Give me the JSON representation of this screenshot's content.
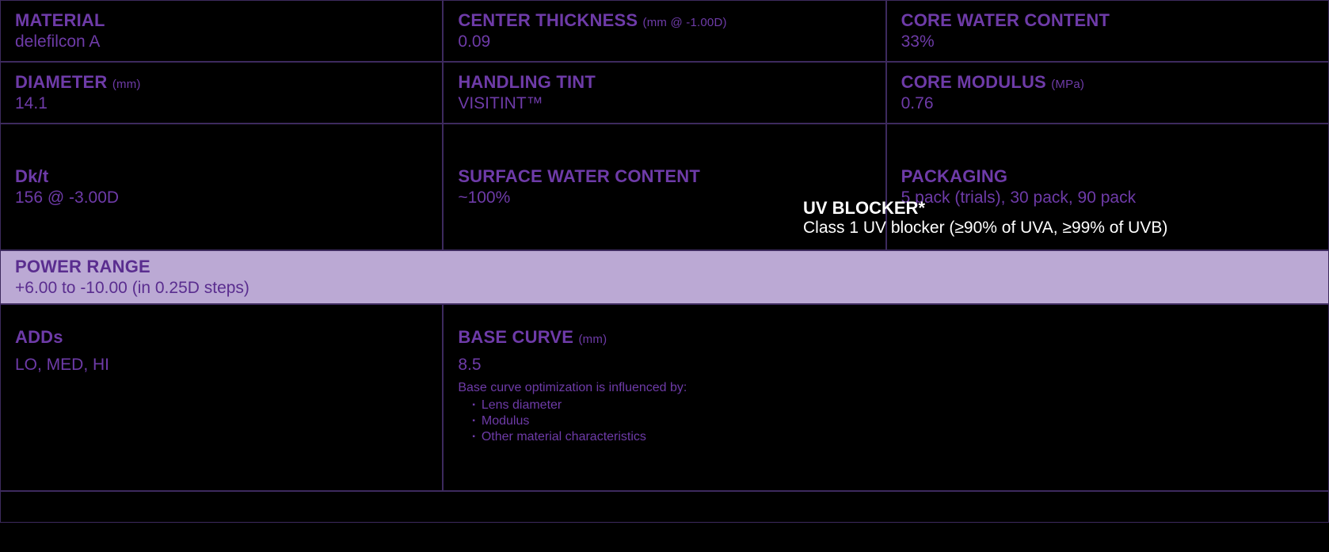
{
  "colors": {
    "background": "#000000",
    "border": "#3d2a5e",
    "text_purple": "#6e3ba8",
    "highlight_bg": "#bba9d4",
    "highlight_text": "#5a2d8f",
    "uv_text": "#ffffff"
  },
  "rows": {
    "r1": {
      "c1": {
        "label": "MATERIAL",
        "unit": "",
        "value": "delefilcon A"
      },
      "c2": {
        "label": "CENTER THICKNESS",
        "unit": "(mm @ -1.00D)",
        "value": "0.09"
      },
      "c3": {
        "label": "CORE WATER CONTENT",
        "unit": "",
        "value": "33%"
      }
    },
    "r2": {
      "c1": {
        "label": "DIAMETER",
        "unit": "(mm)",
        "value": "14.1"
      },
      "c2": {
        "label": "HANDLING TINT",
        "unit": "",
        "value": "VISITINT™"
      },
      "c3": {
        "label": "CORE MODULUS",
        "unit": "(MPa)",
        "value": "0.76"
      }
    },
    "r3": {
      "c1": {
        "label": "Dk/t",
        "unit": "",
        "value": "156 @ -3.00D"
      },
      "c2": {
        "label": "SURFACE WATER CONTENT",
        "unit": "",
        "value": "~100%"
      },
      "c3": {
        "label": "PACKAGING",
        "unit": "",
        "value": "5 pack (trials), 30 pack, 90 pack"
      }
    },
    "r4": {
      "label": "POWER RANGE",
      "value": "+6.00 to -10.00 (in 0.25D steps)"
    },
    "r5": {
      "adds": {
        "label": "ADDs",
        "value": "LO, MED, HI"
      },
      "bc": {
        "label": "BASE CURVE",
        "unit": "(mm)",
        "value": "8.5",
        "note": "Base curve optimization is influenced by:",
        "bullets": [
          "Lens diameter",
          "Modulus",
          "Other material characteristics"
        ]
      }
    }
  },
  "uv_overlay": {
    "label": "UV BLOCKER*",
    "value": "Class 1 UV blocker (≥90% of UVA,  ≥99% of UVB)"
  }
}
